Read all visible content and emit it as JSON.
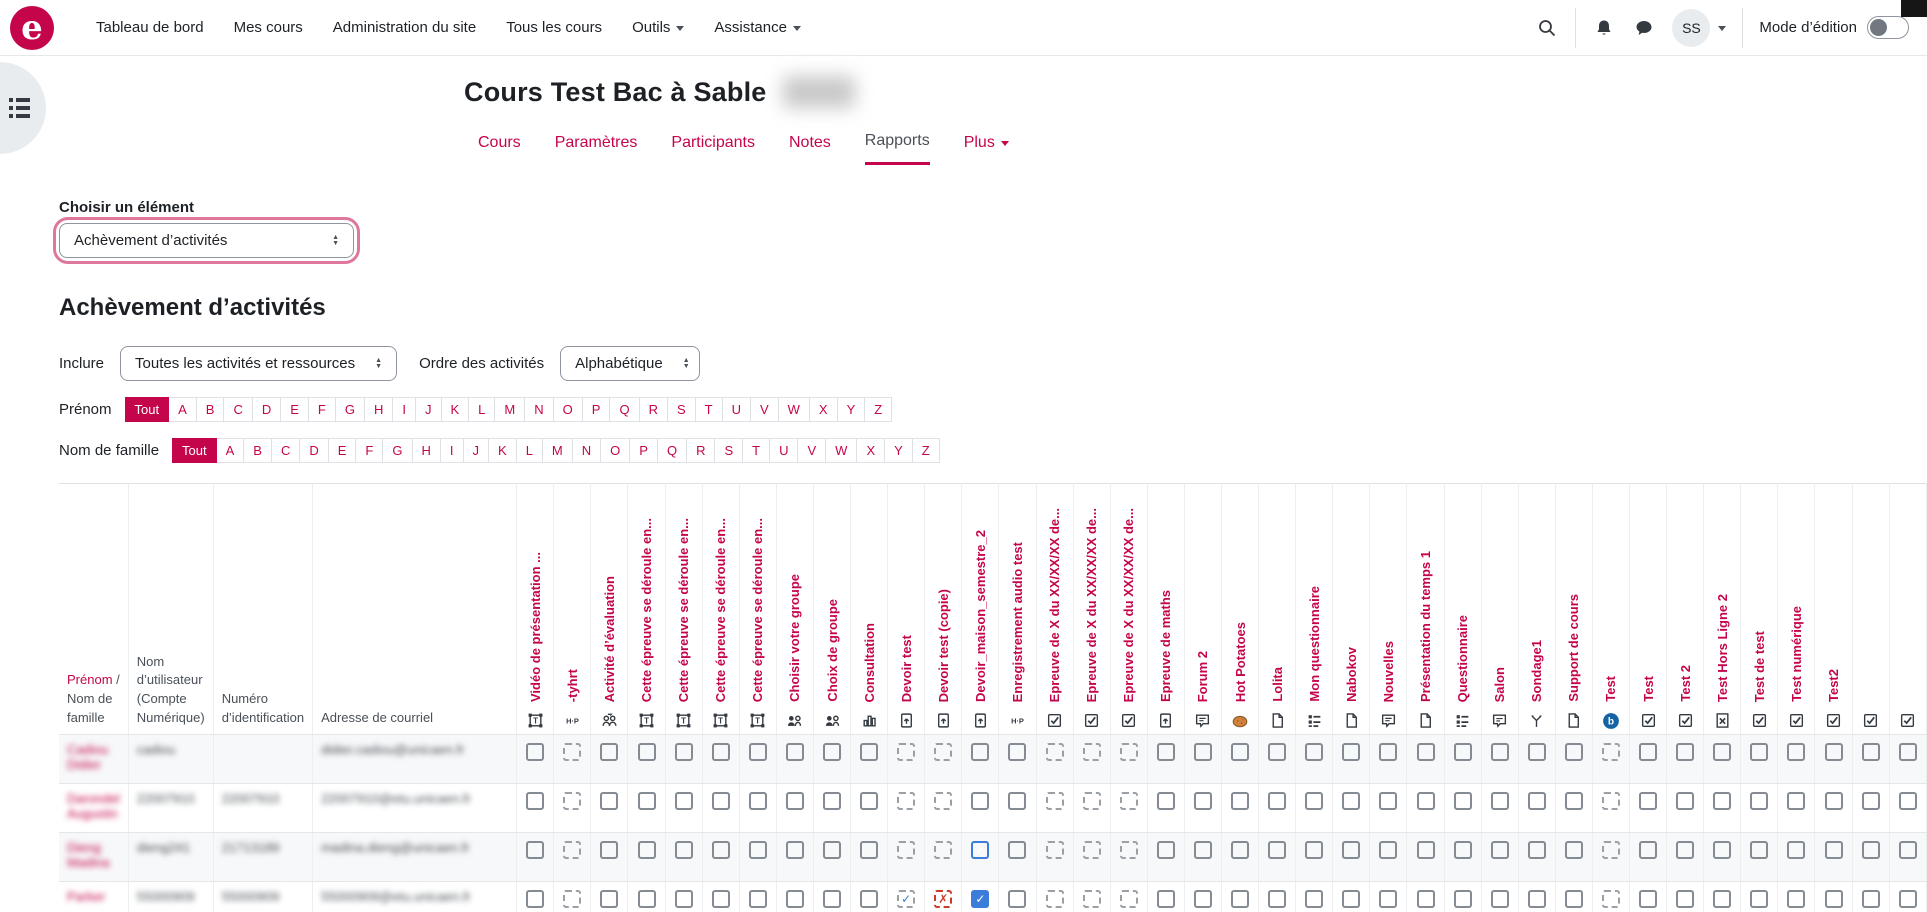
{
  "colors": {
    "brand": "#c5054b",
    "checked_blue": "#3b7dd8",
    "failed_red": "#cb3b2a",
    "dark_text": "#1d2125",
    "muted_text": "#495057",
    "border": "#dee2e6"
  },
  "navbar": {
    "logo_letter": "e",
    "links": [
      "Tableau de bord",
      "Mes cours",
      "Administration du site",
      "Tous les cours"
    ],
    "dropdowns": [
      "Outils",
      "Assistance"
    ],
    "icons": [
      "search-icon",
      "notifications-icon",
      "messages-icon"
    ],
    "avatar_initials": "SS",
    "edit_mode_label": "Mode d’édition",
    "edit_mode_on": false
  },
  "course": {
    "title": "Cours Test Bac à Sable",
    "title_suffix_redacted": true
  },
  "tabs": [
    {
      "label": "Cours",
      "active": false,
      "dropdown": false
    },
    {
      "label": "Paramètres",
      "active": false,
      "dropdown": false
    },
    {
      "label": "Participants",
      "active": false,
      "dropdown": false
    },
    {
      "label": "Notes",
      "active": false,
      "dropdown": false
    },
    {
      "label": "Rapports",
      "active": true,
      "dropdown": false
    },
    {
      "label": "Plus",
      "active": false,
      "dropdown": true
    }
  ],
  "selector": {
    "label": "Choisir un élément",
    "value": "Achèvement d’activités"
  },
  "heading": "Achèvement d’activités",
  "filters": {
    "include_label": "Inclure",
    "include_value": "Toutes les activités et ressources",
    "order_label": "Ordre des activités",
    "order_value": "Alphabétique",
    "firstname_label": "Prénom",
    "lastname_label": "Nom de famille",
    "all_label": "Tout",
    "letters": [
      "A",
      "B",
      "C",
      "D",
      "E",
      "F",
      "G",
      "H",
      "I",
      "J",
      "K",
      "L",
      "M",
      "N",
      "O",
      "P",
      "Q",
      "R",
      "S",
      "T",
      "U",
      "V",
      "W",
      "X",
      "Y",
      "Z"
    ]
  },
  "table": {
    "name_header_link": "Prénom",
    "name_header_rest": " / Nom de famille",
    "left_headers": [
      "Nom d’utilisateur (Compte Numérique)",
      "Numéro d’identification",
      "Adresse de courriel"
    ],
    "activities": [
      {
        "name": "Vidéo de présentation ...",
        "icon": "label",
        "dashed": false
      },
      {
        "name": "-tyhrt",
        "icon": "hotpot",
        "dashed": true
      },
      {
        "name": "Activité d’évaluation",
        "icon": "workshop",
        "dashed": false
      },
      {
        "name": "Cette épreuve se déroule en...",
        "icon": "label",
        "dashed": false
      },
      {
        "name": "Cette épreuve se déroule en...",
        "icon": "label",
        "dashed": false
      },
      {
        "name": "Cette épreuve se déroule en...",
        "icon": "label",
        "dashed": false
      },
      {
        "name": "Cette épreuve se déroule en...",
        "icon": "label",
        "dashed": false
      },
      {
        "name": "Choisir votre groupe",
        "icon": "group",
        "dashed": false
      },
      {
        "name": "Choix de groupe",
        "icon": "group",
        "dashed": false
      },
      {
        "name": "Consultation",
        "icon": "survey",
        "dashed": false
      },
      {
        "name": "Devoir test",
        "icon": "assign",
        "dashed": true
      },
      {
        "name": "Devoir test (copie)",
        "icon": "assign",
        "dashed": true
      },
      {
        "name": "Devoir_maison_semestre_2",
        "icon": "assign",
        "dashed": false
      },
      {
        "name": "Enregistrement audio test",
        "icon": "hotpot",
        "dashed": false
      },
      {
        "name": "Epreuve de X du XX/XX/XX de...",
        "icon": "quiz",
        "dashed": true
      },
      {
        "name": "Epreuve de X du XX/XX/XX de...",
        "icon": "quiz",
        "dashed": true
      },
      {
        "name": "Epreuve de X du XX/XX/XX de...",
        "icon": "quiz",
        "dashed": true
      },
      {
        "name": "Epreuve de maths",
        "icon": "assign",
        "dashed": false
      },
      {
        "name": "Forum 2",
        "icon": "forum",
        "dashed": false
      },
      {
        "name": "Hot Potatoes",
        "icon": "potato",
        "dashed": false
      },
      {
        "name": "Lolita",
        "icon": "page",
        "dashed": false
      },
      {
        "name": "Mon questionnaire",
        "icon": "feedback",
        "dashed": false
      },
      {
        "name": "Nabokov",
        "icon": "page",
        "dashed": false
      },
      {
        "name": "Nouvelles",
        "icon": "forum",
        "dashed": false
      },
      {
        "name": "Présentation du temps 1",
        "icon": "page",
        "dashed": false
      },
      {
        "name": "Questionnaire",
        "icon": "feedback",
        "dashed": false
      },
      {
        "name": "Salon",
        "icon": "chat",
        "dashed": false
      },
      {
        "name": "Sondage1",
        "icon": "choice",
        "dashed": false
      },
      {
        "name": "Support de cours",
        "icon": "page",
        "dashed": false
      },
      {
        "name": "Test",
        "icon": "bbb",
        "dashed": true
      },
      {
        "name": "Test",
        "icon": "quiz",
        "dashed": false
      },
      {
        "name": "Test 2",
        "icon": "quiz",
        "dashed": false
      },
      {
        "name": "Test Hors Ligne 2",
        "icon": "quizoffline",
        "dashed": false
      },
      {
        "name": "Test de test",
        "icon": "quiz",
        "dashed": false
      },
      {
        "name": "Test numérique",
        "icon": "quiz",
        "dashed": false
      },
      {
        "name": "Test2",
        "icon": "quiz",
        "dashed": false
      },
      {
        "name": "",
        "icon": "quiz",
        "dashed": false
      },
      {
        "name": "",
        "icon": "quiz",
        "dashed": false
      }
    ],
    "rows_redacted": true,
    "rows": [
      {
        "name": "Cadiou Didier",
        "username": "cadiou",
        "idnumber": "",
        "email": "didier.cadiou@unicaen.fr",
        "checks": {}
      },
      {
        "name": "Darondel Augustin",
        "username": "22007910",
        "idnumber": "22007910",
        "email": "22007910@etu.unicaen.fr",
        "checks": {}
      },
      {
        "name": "Dieng Madina",
        "username": "dieng241",
        "idnumber": "21713189",
        "email": "madina.dieng@unicaen.fr",
        "checks": {
          "12": "checked"
        }
      },
      {
        "name": "Parker",
        "username": "55000909",
        "idnumber": "55000909",
        "email": "55000909@etu.unicaen.fr",
        "checks": {
          "10": "checked-dashed",
          "11": "failed",
          "12": "checked"
        }
      }
    ]
  }
}
